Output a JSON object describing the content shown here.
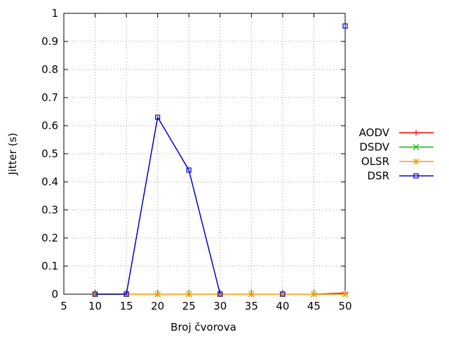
{
  "chart_data": {
    "type": "line",
    "title": "",
    "xlabel": "Broj čvorova",
    "ylabel": "Jitter (s)",
    "xlim": [
      5,
      50
    ],
    "ylim": [
      0,
      1
    ],
    "xticks": [
      "5",
      "10",
      "15",
      "20",
      "25",
      "30",
      "35",
      "40",
      "45",
      "50"
    ],
    "yticks": [
      "0",
      "0.1",
      "0.2",
      "0.3",
      "0.4",
      "0.5",
      "0.6",
      "0.7",
      "0.8",
      "0.9",
      "1"
    ],
    "grid": true,
    "legend_position": "right",
    "series": [
      {
        "name": "AODV",
        "color": "#ff0000",
        "marker": "plus",
        "points": [
          [
            10,
            0
          ],
          [
            15,
            0
          ],
          [
            20,
            0
          ],
          [
            25,
            0
          ],
          [
            30,
            0
          ],
          [
            35,
            0
          ],
          [
            40,
            0
          ],
          [
            45,
            0
          ],
          [
            50,
            0.004
          ]
        ],
        "segments": [
          [
            [
              10,
              0
            ],
            [
              15,
              0
            ]
          ],
          [
            [
              45,
              0
            ],
            [
              50,
              0.004
            ]
          ]
        ]
      },
      {
        "name": "DSDV",
        "color": "#00c000",
        "marker": "cross",
        "points": [
          [
            10,
            0
          ],
          [
            15,
            0
          ],
          [
            20,
            0
          ],
          [
            25,
            0
          ],
          [
            30,
            0
          ],
          [
            35,
            0
          ],
          [
            40,
            0
          ],
          [
            45,
            0
          ],
          [
            50,
            0
          ]
        ],
        "segments": [
          [
            [
              10,
              0
            ],
            [
              15,
              0
            ]
          ],
          [
            [
              45,
              0
            ],
            [
              50,
              0
            ]
          ]
        ]
      },
      {
        "name": "OLSR",
        "color": "#ff9900",
        "marker": "star",
        "points": [
          [
            10,
            0
          ],
          [
            15,
            0
          ],
          [
            20,
            0
          ],
          [
            25,
            0
          ],
          [
            30,
            0
          ],
          [
            35,
            0
          ],
          [
            40,
            0
          ],
          [
            45,
            0
          ],
          [
            50,
            0
          ]
        ],
        "segments": [
          [
            [
              10,
              0
            ],
            [
              15,
              0
            ],
            [
              20,
              0
            ],
            [
              25,
              0
            ],
            [
              30,
              0
            ],
            [
              35,
              0
            ],
            [
              40,
              0
            ],
            [
              45,
              0
            ],
            [
              50,
              0
            ]
          ]
        ]
      },
      {
        "name": "DSR",
        "color": "#0000cc",
        "marker": "square",
        "points": [
          [
            10,
            0
          ],
          [
            15,
            0
          ],
          [
            20,
            0.63
          ],
          [
            25,
            0.442
          ],
          [
            30,
            0
          ],
          [
            40,
            0
          ],
          [
            50,
            0.955
          ]
        ],
        "segments": [
          [
            [
              10,
              0
            ],
            [
              15,
              0
            ],
            [
              20,
              0.63
            ],
            [
              25,
              0.442
            ],
            [
              30,
              0
            ]
          ]
        ]
      }
    ]
  }
}
